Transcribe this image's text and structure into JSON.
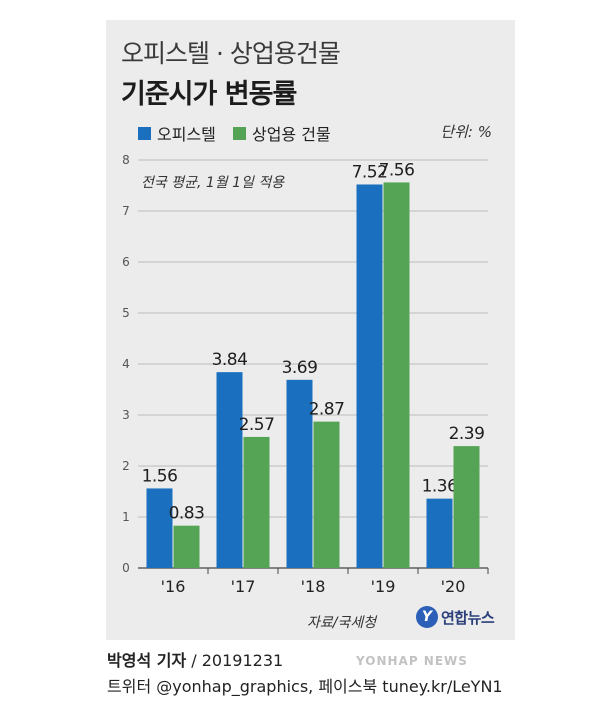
{
  "header": {
    "title_line1": "오피스텔 · 상업용건물",
    "title_line2": "기준시가 변동률"
  },
  "legend": {
    "items": [
      {
        "label": "오피스텔",
        "color": "#1a6fbf"
      },
      {
        "label": "상업용 건물",
        "color": "#55a455"
      }
    ]
  },
  "unit_label": "단위: %",
  "note": "전국 평균, 1월 1일 적용",
  "chart_data": {
    "type": "bar",
    "categories": [
      "'16",
      "'17",
      "'18",
      "'19",
      "'20"
    ],
    "series": [
      {
        "name": "오피스텔",
        "values": [
          1.56,
          3.84,
          3.69,
          7.52,
          1.36
        ],
        "labels": [
          "1.56",
          "3.84",
          "3.69",
          "7.52",
          "1.36"
        ],
        "color": "#1a6fbf"
      },
      {
        "name": "상업용 건물",
        "values": [
          0.83,
          2.57,
          2.87,
          7.56,
          2.39
        ],
        "labels": [
          "0.83",
          "2.57",
          "2.87",
          "7.56",
          "2.39"
        ],
        "color": "#55a455"
      }
    ],
    "ylim": [
      0,
      8
    ],
    "yticks": [
      "0",
      "1",
      "2",
      "3",
      "4",
      "5",
      "6",
      "7",
      "8"
    ],
    "grid": true,
    "legend_position": "top-left"
  },
  "source": "자료/국세청",
  "logo": {
    "mark": "Y",
    "name": "연합뉴스"
  },
  "credit": {
    "author": "박영석 기자",
    "date": "/ 20191231",
    "social": "트위터 @yonhap_graphics, 페이스북 tuney.kr/LeYN1"
  },
  "watermark": "YONHAP NEWS"
}
